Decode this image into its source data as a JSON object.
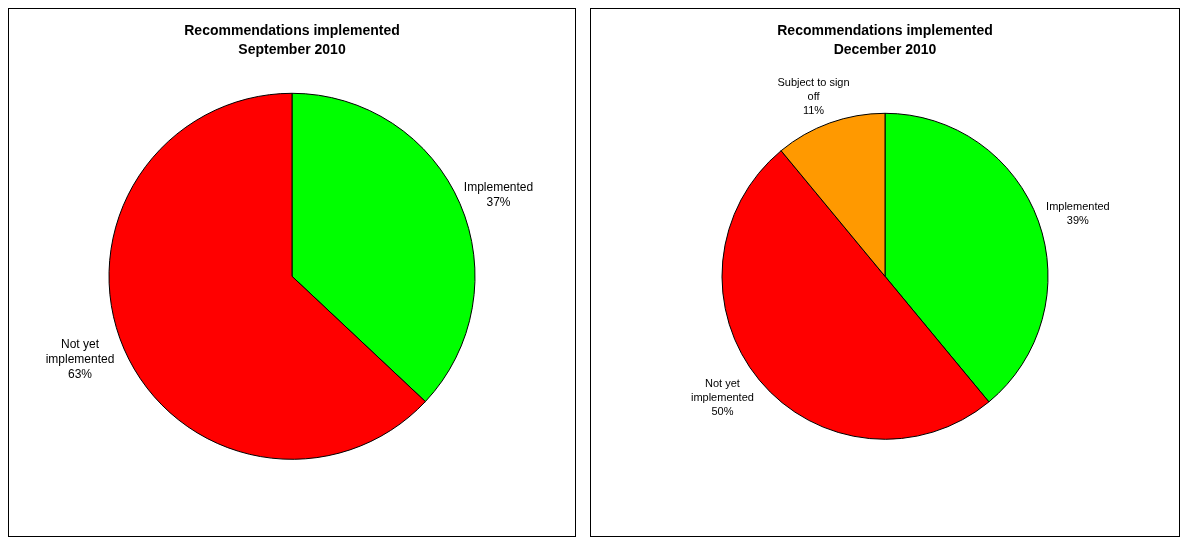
{
  "chart_data": [
    {
      "type": "pie",
      "title": "Recommendations implemented",
      "subtitle": "September 2010",
      "categories": [
        "Implemented",
        "Not yet implemented"
      ],
      "values": [
        37,
        63
      ],
      "value_labels": [
        "37%",
        "63%"
      ],
      "colors": [
        "#00ff00",
        "#ff0000"
      ]
    },
    {
      "type": "pie",
      "title": "Recommendations implemented",
      "subtitle": "December 2010",
      "categories": [
        "Implemented",
        "Not yet implemented",
        "Subject to sign off"
      ],
      "values": [
        39,
        50,
        11
      ],
      "value_labels": [
        "39%",
        "50%",
        "11%"
      ],
      "colors": [
        "#00ff00",
        "#ff0000",
        "#ff9900"
      ]
    }
  ]
}
